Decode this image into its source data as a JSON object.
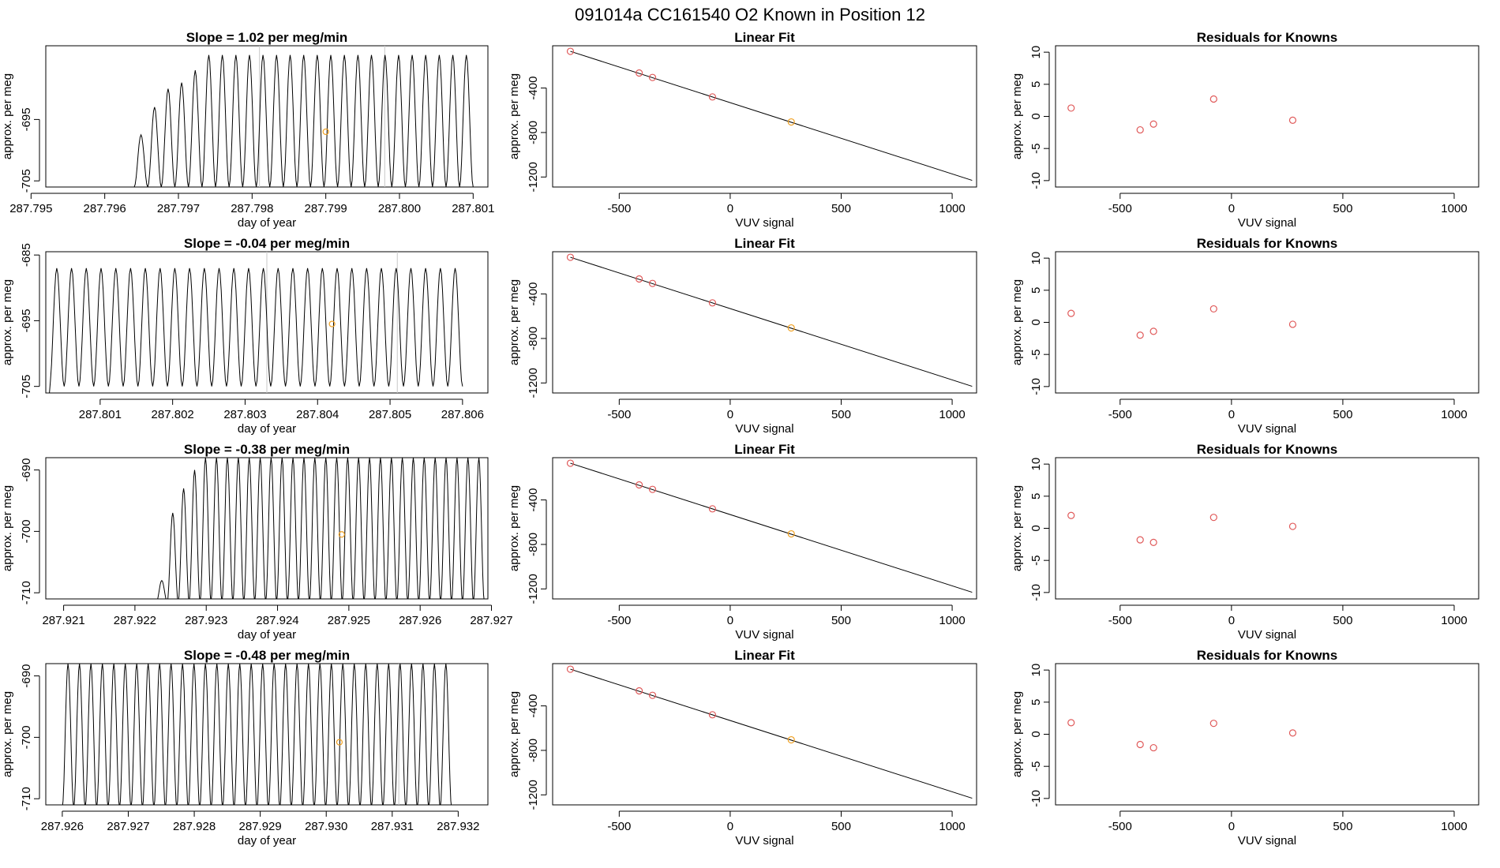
{
  "page_title": "091014a      CC161540    O2 Known in Position  12",
  "colors": {
    "known_point": "#e05a5a",
    "sample_point": "#f0a020",
    "trace": "#000000",
    "guide_line": "#c8c8c8"
  },
  "chart_data": [
    {
      "type": "line",
      "row": 1,
      "title": "Slope =  1.02  per meg/min",
      "xlabel": "day of year",
      "ylabel": "approx. per meg",
      "xlim": [
        287.7952,
        287.8012
      ],
      "ylim": [
        -706,
        -683
      ],
      "xticks": [
        287.795,
        287.796,
        287.797,
        287.798,
        287.799,
        287.8,
        287.801
      ],
      "xtick_labels": [
        "287.795",
        "287.796",
        "287.797",
        "287.798",
        "287.799",
        "287.800",
        "287.801"
      ],
      "yticks": [
        -705,
        -695
      ],
      "ytick_labels": [
        "-705",
        "-695"
      ],
      "trace": {
        "x_start": 287.7964,
        "x_end": 287.801,
        "baseline": -706,
        "peak": -684.5,
        "trough": -706,
        "cycles": 25,
        "ramp_peaks": [
          -697.5,
          -693,
          -690,
          -689,
          -687
        ]
      },
      "sample_point": {
        "x": 287.799,
        "y": -697
      },
      "guide_lines": [
        287.7981,
        287.7998
      ]
    },
    {
      "type": "line",
      "row": 2,
      "title": "Slope =  -0.04  per meg/min",
      "xlabel": "day of year",
      "ylabel": "approx. per meg",
      "xlim": [
        287.80025,
        287.80635
      ],
      "ylim": [
        -706,
        -684.5
      ],
      "xticks": [
        287.801,
        287.802,
        287.803,
        287.804,
        287.805,
        287.806
      ],
      "xtick_labels": [
        "287.801",
        "287.802",
        "287.803",
        "287.804",
        "287.805",
        "287.806"
      ],
      "yticks": [
        -705,
        -695,
        -685
      ],
      "ytick_labels": [
        "-705",
        "-695",
        "-685"
      ],
      "trace": {
        "x_start": 287.8003,
        "x_end": 287.806,
        "baseline": -706,
        "peak": -687,
        "trough": -705,
        "cycles": 28,
        "ramp_peaks": []
      },
      "sample_point": {
        "x": 287.8042,
        "y": -695.5
      },
      "guide_lines": [
        287.8033,
        287.8051
      ]
    },
    {
      "type": "line",
      "row": 3,
      "title": "Slope =  -0.38  per meg/min",
      "xlabel": "day of year",
      "ylabel": "approx. per meg",
      "xlim": [
        287.92075,
        287.92695
      ],
      "ylim": [
        -711,
        -688
      ],
      "xticks": [
        287.921,
        287.922,
        287.923,
        287.924,
        287.925,
        287.926,
        287.927
      ],
      "xtick_labels": [
        "287.921",
        "287.922",
        "287.923",
        "287.924",
        "287.925",
        "287.926",
        "287.927"
      ],
      "yticks": [
        -710,
        -700,
        -690
      ],
      "ytick_labels": [
        "-710",
        "-700",
        "-690"
      ],
      "trace": {
        "x_start": 287.9223,
        "x_end": 287.9269,
        "baseline": -711.5,
        "peak": -688,
        "trough": -711.5,
        "cycles": 30,
        "ramp_peaks": [
          -708,
          -697,
          -693,
          -690
        ]
      },
      "sample_point": {
        "x": 287.9249,
        "y": -700.5
      },
      "guide_lines": []
    },
    {
      "type": "line",
      "row": 4,
      "title": "Slope =  -0.48  per meg/min",
      "xlabel": "day of year",
      "ylabel": "approx. per meg",
      "xlim": [
        287.92575,
        287.93245
      ],
      "ylim": [
        -711,
        -688
      ],
      "xticks": [
        287.926,
        287.927,
        287.928,
        287.929,
        287.93,
        287.931,
        287.932
      ],
      "xtick_labels": [
        "287.926",
        "287.927",
        "287.928",
        "287.929",
        "287.930",
        "287.931",
        "287.932"
      ],
      "yticks": [
        -710,
        -700,
        -690
      ],
      "ytick_labels": [
        "-710",
        "-700",
        "-690"
      ],
      "trace": {
        "x_start": 287.926,
        "x_end": 287.9319,
        "baseline": -711.5,
        "peak": -688,
        "trough": -711.5,
        "cycles": 34,
        "ramp_peaks": []
      },
      "sample_point": {
        "x": 287.9302,
        "y": -700.8
      },
      "guide_lines": [
        287.9311
      ]
    },
    {
      "type": "scatter",
      "row": 1,
      "title": "Linear Fit",
      "xlabel": "VUV signal",
      "ylabel": "approx. per meg",
      "xlim": [
        -800,
        1110
      ],
      "ylim": [
        -1290,
        -20
      ],
      "xticks": [
        -500,
        0,
        500,
        1000
      ],
      "xtick_labels": [
        "-500",
        "0",
        "500",
        "1000"
      ],
      "yticks": [
        -1200,
        -800,
        -400
      ],
      "ytick_labels": [
        "-1200",
        "-800",
        "-400"
      ],
      "fit_line": [
        [
          -720,
          -70
        ],
        [
          1090,
          -1230
        ]
      ],
      "known_points": [
        [
          -720,
          -70
        ],
        [
          -410,
          -265
        ],
        [
          -350,
          -305
        ],
        [
          -80,
          -480
        ]
      ],
      "sample_points": [
        [
          275,
          -705
        ]
      ]
    },
    {
      "type": "scatter",
      "row": 2,
      "title": "Linear Fit",
      "xlabel": "VUV signal",
      "ylabel": "approx. per meg",
      "xlim": [
        -800,
        1110
      ],
      "ylim": [
        -1290,
        -20
      ],
      "xticks": [
        -500,
        0,
        500,
        1000
      ],
      "xtick_labels": [
        "-500",
        "0",
        "500",
        "1000"
      ],
      "yticks": [
        -1200,
        -800,
        -400
      ],
      "ytick_labels": [
        "-1200",
        "-800",
        "-400"
      ],
      "fit_line": [
        [
          -720,
          -70
        ],
        [
          1090,
          -1230
        ]
      ],
      "known_points": [
        [
          -720,
          -70
        ],
        [
          -410,
          -265
        ],
        [
          -350,
          -305
        ],
        [
          -80,
          -480
        ]
      ],
      "sample_points": [
        [
          275,
          -705
        ]
      ]
    },
    {
      "type": "scatter",
      "row": 3,
      "title": "Linear Fit",
      "xlabel": "VUV signal",
      "ylabel": "approx. per meg",
      "xlim": [
        -800,
        1110
      ],
      "ylim": [
        -1290,
        -20
      ],
      "xticks": [
        -500,
        0,
        500,
        1000
      ],
      "xtick_labels": [
        "-500",
        "0",
        "500",
        "1000"
      ],
      "yticks": [
        -1200,
        -800,
        -400
      ],
      "ytick_labels": [
        "-1200",
        "-800",
        "-400"
      ],
      "fit_line": [
        [
          -720,
          -70
        ],
        [
          1090,
          -1230
        ]
      ],
      "known_points": [
        [
          -720,
          -70
        ],
        [
          -410,
          -265
        ],
        [
          -350,
          -305
        ],
        [
          -80,
          -480
        ]
      ],
      "sample_points": [
        [
          275,
          -705
        ]
      ]
    },
    {
      "type": "scatter",
      "row": 4,
      "title": "Linear Fit",
      "xlabel": "VUV signal",
      "ylabel": "approx. per meg",
      "xlim": [
        -800,
        1110
      ],
      "ylim": [
        -1290,
        -20
      ],
      "xticks": [
        -500,
        0,
        500,
        1000
      ],
      "xtick_labels": [
        "-500",
        "0",
        "500",
        "1000"
      ],
      "yticks": [
        -1200,
        -800,
        -400
      ],
      "ytick_labels": [
        "-1200",
        "-800",
        "-400"
      ],
      "fit_line": [
        [
          -720,
          -70
        ],
        [
          1090,
          -1230
        ]
      ],
      "known_points": [
        [
          -720,
          -70
        ],
        [
          -410,
          -265
        ],
        [
          -350,
          -305
        ],
        [
          -80,
          -480
        ]
      ],
      "sample_points": [
        [
          275,
          -705
        ]
      ]
    },
    {
      "type": "scatter",
      "row": 1,
      "title": "Residuals for Knowns",
      "xlabel": "VUV signal",
      "ylabel": "approx. per meg",
      "xlim": [
        -790,
        1110
      ],
      "ylim": [
        -11,
        11
      ],
      "xticks": [
        -500,
        0,
        500,
        1000
      ],
      "xtick_labels": [
        "-500",
        "0",
        "500",
        "1000"
      ],
      "yticks": [
        -10,
        -5,
        0,
        5,
        10
      ],
      "ytick_labels": [
        "-10",
        "-5",
        "0",
        "5",
        "10"
      ],
      "known_points": [
        [
          -720,
          1.3
        ],
        [
          -410,
          -2.1
        ],
        [
          -350,
          -1.2
        ],
        [
          -80,
          2.7
        ],
        [
          275,
          -0.6
        ]
      ]
    },
    {
      "type": "scatter",
      "row": 2,
      "title": "Residuals for Knowns",
      "xlabel": "VUV signal",
      "ylabel": "approx. per meg",
      "xlim": [
        -790,
        1110
      ],
      "ylim": [
        -11,
        11
      ],
      "xticks": [
        -500,
        0,
        500,
        1000
      ],
      "xtick_labels": [
        "-500",
        "0",
        "500",
        "1000"
      ],
      "yticks": [
        -10,
        -5,
        0,
        5,
        10
      ],
      "ytick_labels": [
        "-10",
        "-5",
        "0",
        "5",
        "10"
      ],
      "known_points": [
        [
          -720,
          1.4
        ],
        [
          -410,
          -2.0
        ],
        [
          -350,
          -1.4
        ],
        [
          -80,
          2.1
        ],
        [
          275,
          -0.3
        ]
      ]
    },
    {
      "type": "scatter",
      "row": 3,
      "title": "Residuals for Knowns",
      "xlabel": "VUV signal",
      "ylabel": "approx. per meg",
      "xlim": [
        -790,
        1110
      ],
      "ylim": [
        -11,
        11
      ],
      "xticks": [
        -500,
        0,
        500,
        1000
      ],
      "xtick_labels": [
        "-500",
        "0",
        "500",
        "1000"
      ],
      "yticks": [
        -10,
        -5,
        0,
        5,
        10
      ],
      "ytick_labels": [
        "-10",
        "-5",
        "0",
        "5",
        "10"
      ],
      "known_points": [
        [
          -720,
          2.0
        ],
        [
          -410,
          -1.8
        ],
        [
          -350,
          -2.2
        ],
        [
          -80,
          1.7
        ],
        [
          275,
          0.3
        ]
      ]
    },
    {
      "type": "scatter",
      "row": 4,
      "title": "Residuals for Knowns",
      "xlabel": "VUV signal",
      "ylabel": "approx. per meg",
      "xlim": [
        -790,
        1110
      ],
      "ylim": [
        -11,
        11
      ],
      "xticks": [
        -500,
        0,
        500,
        1000
      ],
      "xtick_labels": [
        "-500",
        "0",
        "500",
        "1000"
      ],
      "yticks": [
        -10,
        -5,
        0,
        5,
        10
      ],
      "ytick_labels": [
        "-10",
        "-5",
        "0",
        "5",
        "10"
      ],
      "known_points": [
        [
          -720,
          1.8
        ],
        [
          -410,
          -1.6
        ],
        [
          -350,
          -2.1
        ],
        [
          -80,
          1.7
        ],
        [
          275,
          0.2
        ]
      ]
    }
  ]
}
